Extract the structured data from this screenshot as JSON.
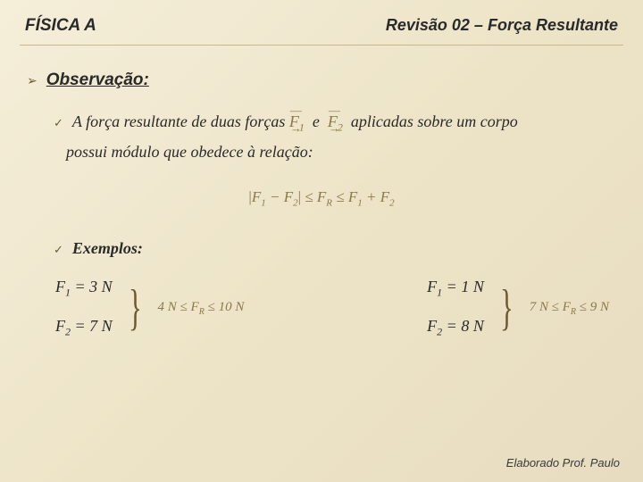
{
  "header": {
    "left": "FÍSICA A",
    "right": "Revisão 02 – Força Resultante"
  },
  "section": {
    "observacao": "Observação:",
    "line_part1": "A força resultante de duas forças",
    "line_part2": "e",
    "line_part3": "aplicadas sobre um corpo",
    "relation": "possui módulo que obedece à relação:",
    "exemplos": "Exemplos:"
  },
  "vectors": {
    "F1": "F",
    "F1_sub": "1",
    "F2": "F",
    "F2_sub": "2"
  },
  "formula": {
    "left_abs_open": "|",
    "left_F1": "F",
    "left_F1_sub": "1",
    "minus": " − ",
    "left_F2": "F",
    "left_F2_sub": "2",
    "left_abs_close": "|",
    "le1": "  ≤  ",
    "FR": "F",
    "FR_sub": "R",
    "le2": "  ≤  ",
    "right_F1": "F",
    "right_F1_sub": "1",
    "plus": " + ",
    "right_F2": "F",
    "right_F2_sub": "2"
  },
  "examples": [
    {
      "values": [
        {
          "label": "F",
          "sub": "1",
          "eq": " = 3 N"
        },
        {
          "label": "F",
          "sub": "2",
          "eq": " = 7 N"
        }
      ],
      "range": {
        "low": "4 N",
        "le1": " ≤ ",
        "FR": "F",
        "FR_sub": "R",
        "le2": " ≤ ",
        "high": "10 N"
      }
    },
    {
      "values": [
        {
          "label": "F",
          "sub": "1",
          "eq": " = 1 N"
        },
        {
          "label": "F",
          "sub": "2",
          "eq": " = 8 N"
        }
      ],
      "range": {
        "low": "7 N",
        "le1": " ≤ ",
        "FR": "F",
        "FR_sub": "R",
        "le2": " ≤ ",
        "high": "9 N"
      }
    }
  ],
  "footer": "Elaborado Prof. Paulo",
  "colors": {
    "bg_start": "#f5eed9",
    "bg_end": "#e8dcc0",
    "text": "#2a2a2a",
    "accent": "#8a7a4a",
    "rule": "#c9b88a"
  }
}
